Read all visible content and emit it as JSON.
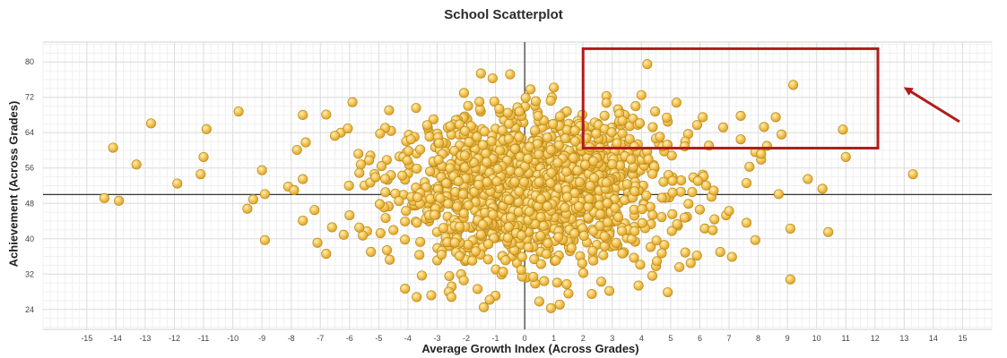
{
  "chart_data": {
    "type": "scatter",
    "title": "School Scatterplot",
    "xlabel": "Average Growth Index (Across Grades)",
    "ylabel": "Achievement (Across Grades)",
    "xlim": [
      -16.5,
      16
    ],
    "ylim": [
      19.5,
      84.5
    ],
    "xticks": [
      -15,
      -14,
      -13,
      -12,
      -11,
      -10,
      -9,
      -8,
      -7,
      -6,
      -5,
      -4,
      -3,
      -2,
      -1,
      0,
      1,
      2,
      3,
      4,
      5,
      6,
      7,
      8,
      9,
      10,
      11,
      12,
      13,
      14,
      15
    ],
    "yticks": [
      24,
      32,
      40,
      48,
      56,
      64,
      72,
      80
    ],
    "reference_lines": {
      "x": 0,
      "y": 50
    },
    "grid": true,
    "marker_color": "#f2c14e",
    "marker_edge_color": "#b98a1c",
    "highlight_box": {
      "x": [
        2,
        12.1
      ],
      "y": [
        60.5,
        83
      ],
      "color": "#b11c1c"
    },
    "arrow_color": "#b11c1c",
    "points": [
      [
        -14.4,
        49.2
      ],
      [
        -14.1,
        60.6
      ],
      [
        -13.9,
        48.6
      ],
      [
        -13.3,
        56.8
      ],
      [
        -12.8,
        66.1
      ],
      [
        -11.9,
        52.5
      ],
      [
        -11.1,
        54.6
      ],
      [
        -11.0,
        58.5
      ],
      [
        -10.9,
        64.8
      ],
      [
        -9.8,
        68.8
      ],
      [
        -9.5,
        46.8
      ],
      [
        -9.3,
        48.9
      ],
      [
        -9.0,
        55.5
      ],
      [
        -8.9,
        39.7
      ],
      [
        -8.9,
        50.1
      ],
      [
        -7.6,
        44.1
      ],
      [
        -7.2,
        46.5
      ],
      [
        -7.1,
        39.1
      ],
      [
        -6.8,
        36.6
      ],
      [
        -7.5,
        61.8
      ],
      [
        -8.1,
        51.8
      ],
      [
        -7.9,
        51.0
      ],
      [
        -7.6,
        53.5
      ],
      [
        -7.8,
        60.1
      ],
      [
        -7.6,
        68.0
      ],
      [
        -6.8,
        68.1
      ],
      [
        -6.3,
        64.0
      ],
      [
        -5.9,
        70.9
      ],
      [
        -6.5,
        63.3
      ],
      [
        -6.6,
        42.6
      ],
      [
        -6.2,
        40.9
      ],
      [
        -6.0,
        45.3
      ],
      [
        -5.4,
        41.7
      ],
      [
        -4.1,
        43.9
      ],
      [
        -4.1,
        28.7
      ],
      [
        -3.7,
        26.8
      ],
      [
        -3.2,
        27.2
      ],
      [
        -2.5,
        29.2
      ],
      [
        -2.6,
        28.0
      ],
      [
        -1.4,
        24.5
      ],
      [
        -1.0,
        27.1
      ],
      [
        -1.2,
        26.2
      ],
      [
        -1.5,
        77.4
      ],
      [
        -1.1,
        76.3
      ],
      [
        -0.5,
        77.2
      ],
      [
        0.2,
        73.8
      ],
      [
        1.0,
        74.2
      ],
      [
        0.5,
        25.8
      ],
      [
        0.9,
        24.3
      ],
      [
        1.2,
        25.1
      ],
      [
        1.5,
        27.6
      ],
      [
        2.3,
        27.5
      ],
      [
        2.9,
        28.2
      ],
      [
        3.9,
        29.4
      ],
      [
        4.9,
        27.9
      ],
      [
        4.5,
        33.8
      ],
      [
        5.3,
        33.6
      ],
      [
        5.5,
        36.9
      ],
      [
        5.9,
        36.2
      ],
      [
        6.0,
        46.6
      ],
      [
        6.1,
        54.5
      ],
      [
        6.4,
        49.5
      ],
      [
        6.5,
        44.4
      ],
      [
        6.7,
        37.0
      ],
      [
        6.9,
        45.3
      ],
      [
        7.0,
        46.3
      ],
      [
        7.1,
        35.9
      ],
      [
        7.6,
        43.6
      ],
      [
        7.9,
        39.7
      ],
      [
        7.6,
        52.6
      ],
      [
        7.7,
        56.3
      ],
      [
        7.9,
        59.6
      ],
      [
        8.1,
        57.9
      ],
      [
        8.1,
        59.2
      ],
      [
        8.3,
        61.0
      ],
      [
        8.7,
        50.1
      ],
      [
        9.1,
        42.3
      ],
      [
        9.1,
        30.8
      ],
      [
        9.7,
        53.5
      ],
      [
        10.2,
        51.3
      ],
      [
        10.4,
        41.5
      ],
      [
        11.0,
        58.5
      ],
      [
        10.9,
        64.7
      ],
      [
        13.3,
        54.6
      ],
      [
        9.2,
        74.8
      ],
      [
        8.8,
        63.6
      ],
      [
        8.2,
        65.3
      ],
      [
        7.4,
        67.8
      ],
      [
        6.8,
        65.2
      ],
      [
        6.1,
        67.5
      ],
      [
        5.6,
        63.7
      ],
      [
        5.2,
        70.8
      ],
      [
        4.9,
        66.5
      ],
      [
        4.2,
        79.5
      ],
      [
        4.0,
        72.5
      ],
      [
        3.8,
        70.0
      ],
      [
        3.6,
        65.5
      ],
      [
        3.2,
        69.3
      ],
      [
        2.8,
        72.3
      ],
      [
        2.5,
        66.0
      ],
      [
        2.2,
        64.0
      ],
      [
        4.6,
        61.5
      ],
      [
        7.4,
        62.5
      ],
      [
        8.6,
        67.5
      ],
      [
        5.5,
        62.0
      ]
    ]
  }
}
